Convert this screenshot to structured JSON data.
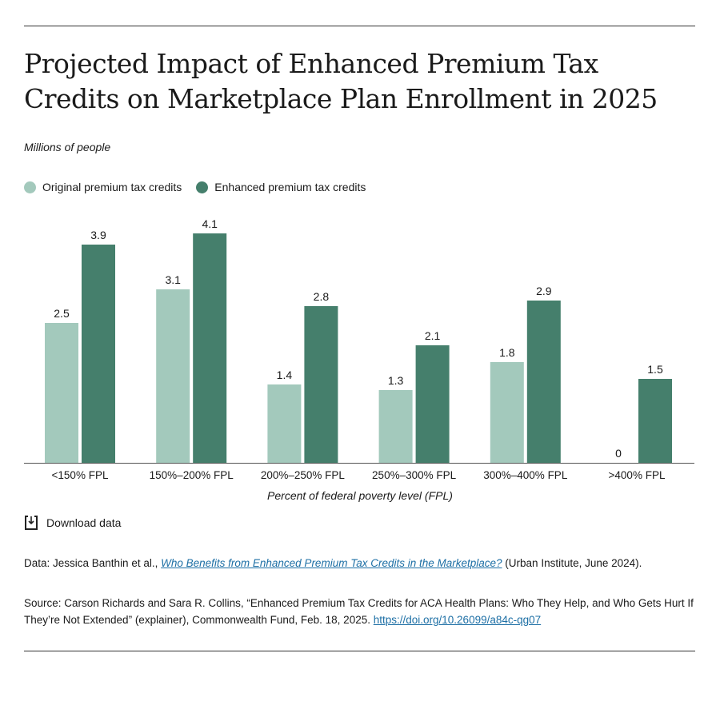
{
  "title": "Projected Impact of Enhanced Premium Tax Credits on Marketplace Plan Enrollment in 2025",
  "units": "Millions of people",
  "download_label": "Download data",
  "data_note": {
    "prefix": "Data: Jessica Banthin et al., ",
    "link": "Who Benefits from Enhanced Premium Tax Credits in the Marketplace?",
    "suffix": " (Urban Institute, June 2024)."
  },
  "source_note": {
    "text": "Source: Carson Richards and Sara R. Collins, “Enhanced Premium Tax Credits for ACA Health Plans: Who They Help, and Who Gets Hurt If They’re Not Extended” (explainer), Commonwealth Fund, Feb. 18, 2025. ",
    "link": "https://doi.org/10.26099/a84c-qg07"
  },
  "chart_data": {
    "type": "bar",
    "xlabel": "Percent of federal poverty level (FPL)",
    "ylabel": "",
    "categories": [
      "<150% FPL",
      "150%–200% FPL",
      "200%–250% FPL",
      "250%–300% FPL",
      "300%–400% FPL",
      ">400% FPL"
    ],
    "series": [
      {
        "name": "Original premium tax credits",
        "color": "#a3c9bc",
        "values": [
          2.5,
          3.1,
          1.4,
          1.3,
          1.8,
          0
        ]
      },
      {
        "name": "Enhanced premium tax credits",
        "color": "#457f6c",
        "values": [
          3.9,
          4.1,
          2.8,
          2.1,
          2.9,
          1.5
        ]
      }
    ],
    "ylim": [
      0,
      4.1
    ],
    "grid": false,
    "legend": "top-left"
  }
}
